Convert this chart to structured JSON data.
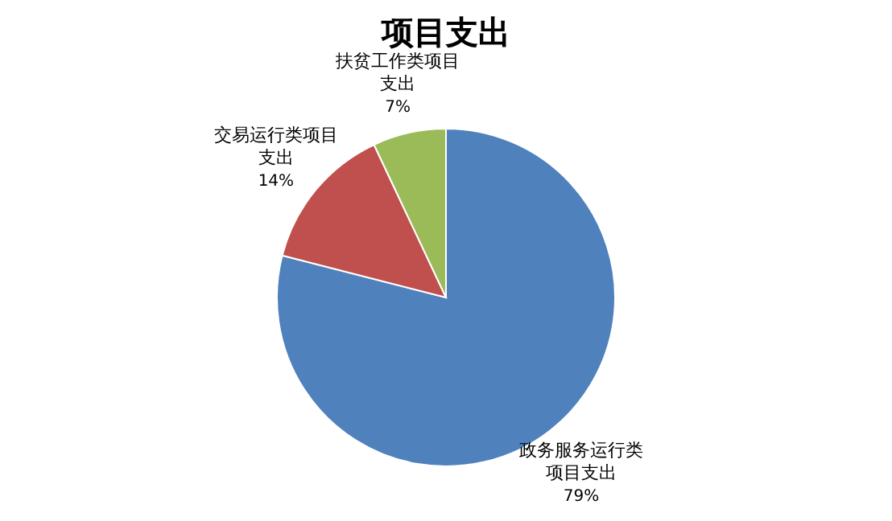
{
  "chart_data": {
    "type": "pie",
    "title": "项目支出",
    "categories": [
      "政务服务运行类项目支出",
      "交易运行类项目支出",
      "扶贫工作类项目支出"
    ],
    "values": [
      79,
      14,
      7
    ],
    "colors": [
      "#4f81bd",
      "#c0504d",
      "#9bbb59"
    ],
    "value_labels": [
      "79%",
      "14%",
      "7%"
    ],
    "legend": false
  }
}
